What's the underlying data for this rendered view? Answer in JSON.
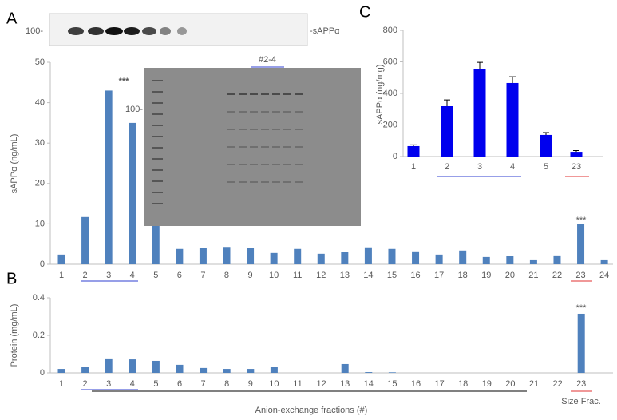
{
  "chart_data": [
    {
      "type": "bar",
      "panel": "A",
      "y_label": "sAPPα (ng/mL)",
      "color": "#4f81bd",
      "categories": [
        "1",
        "2",
        "3",
        "4",
        "5",
        "6",
        "7",
        "8",
        "9",
        "10",
        "11",
        "12",
        "13",
        "14",
        "15",
        "16",
        "17",
        "18",
        "19",
        "20",
        "21",
        "22",
        "23",
        "24"
      ],
      "values": [
        2.4,
        11.7,
        43,
        35,
        9.5,
        3.8,
        4,
        4.3,
        4.1,
        2.8,
        3.8,
        2.6,
        3,
        4.2,
        3.8,
        3.2,
        2.4,
        3.4,
        1.8,
        2,
        1.2,
        2.2,
        9.9,
        1.2
      ],
      "ylim": [
        0,
        50
      ],
      "yticks": [
        0,
        10,
        20,
        30,
        40,
        50
      ],
      "annotations": [
        "***",
        "***"
      ],
      "blot_labels": [
        "100-",
        "-sAPPα",
        "#2-4",
        "100-"
      ]
    },
    {
      "type": "bar",
      "panel": "B",
      "y_label": "Protein (mg/mL)",
      "x_label": "Anion-exchange fractions (#)",
      "color": "#4f81bd",
      "categories": [
        "1",
        "2",
        "3",
        "4",
        "5",
        "6",
        "7",
        "8",
        "9",
        "10",
        "11",
        "12",
        "13",
        "14",
        "15",
        "16",
        "17",
        "18",
        "19",
        "20",
        "21",
        "22",
        "23"
      ],
      "values": [
        0.021,
        0.034,
        0.077,
        0.072,
        0.064,
        0.043,
        0.026,
        0.021,
        0.021,
        0.03,
        0,
        0,
        0.047,
        0.004,
        0.003,
        0,
        0,
        0,
        0,
        0,
        0,
        0,
        0.315
      ],
      "ylim": [
        0,
        0.4
      ],
      "yticks": [
        0,
        0.2,
        0.4
      ],
      "annotations": [
        "***",
        "Size Frac."
      ]
    },
    {
      "type": "bar",
      "panel": "C",
      "y_label": "sAPPα (ng/mg)",
      "color": "#0000ee",
      "categories": [
        "1",
        "2",
        "3",
        "4",
        "5",
        "23"
      ],
      "values": [
        66,
        319,
        552,
        466,
        137,
        30
      ],
      "errors": [
        8,
        40,
        45,
        40,
        15,
        8
      ],
      "ylim": [
        0,
        800
      ],
      "yticks": [
        0,
        200,
        400,
        600,
        800
      ]
    }
  ]
}
